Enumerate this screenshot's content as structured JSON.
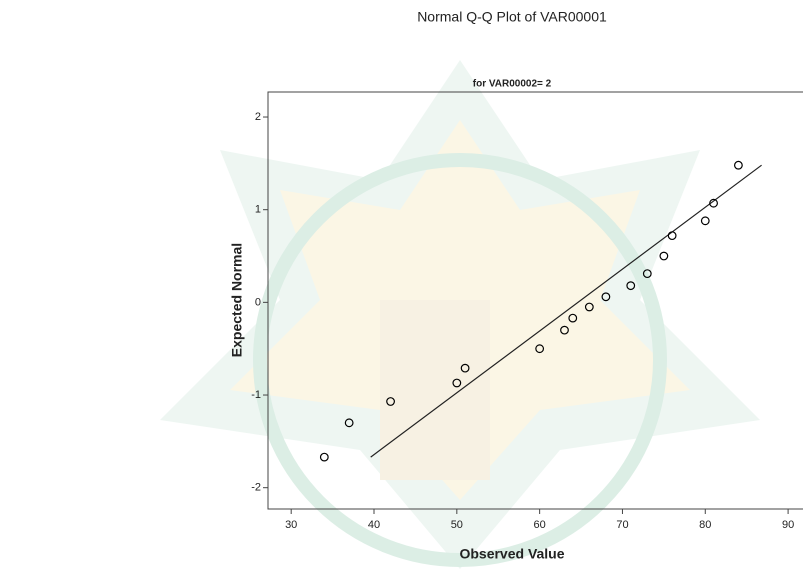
{
  "chart_data": {
    "type": "scatter",
    "title": "Normal Q-Q Plot of VAR00001",
    "subtitle": "for VAR00002= 2",
    "x_label": "Observed Value",
    "y_label": "Expected Normal",
    "x": [
      34,
      37,
      42,
      50,
      51,
      60,
      63,
      64,
      66,
      68,
      71,
      73,
      75,
      76,
      80,
      81,
      84
    ],
    "values": [
      -1.67,
      -1.3,
      -1.07,
      -0.87,
      -0.71,
      -0.5,
      -0.3,
      -0.17,
      -0.05,
      0.06,
      0.18,
      0.31,
      0.5,
      0.72,
      0.88,
      1.07,
      1.48
    ],
    "line": {
      "x": [
        39.6,
        86.8
      ],
      "y": [
        -1.67,
        1.48
      ]
    },
    "xlim": [
      27.2,
      91.8
    ],
    "ylim": [
      -2.23,
      2.27
    ],
    "xticks": [
      30,
      40,
      50,
      60,
      70,
      80,
      90
    ],
    "yticks": [
      -2,
      -1,
      0,
      1,
      2
    ],
    "color": "#000000"
  }
}
